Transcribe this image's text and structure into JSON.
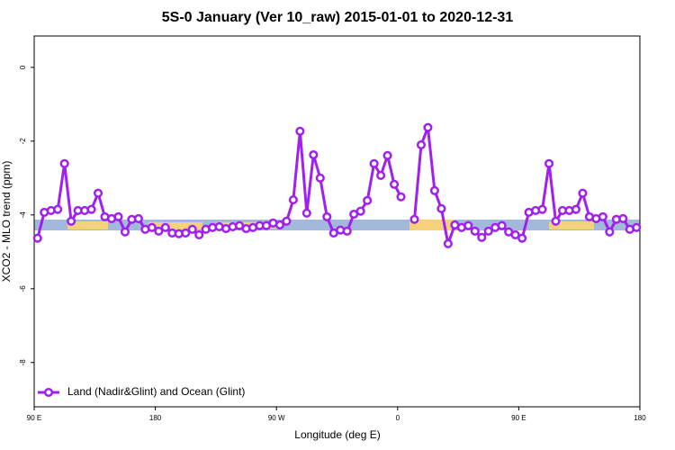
{
  "chart_data": {
    "type": "line",
    "title": "5S-0 January (Ver 10_raw)   2015-01-01 to 2020-12-31",
    "x_label": "Longitude (deg E)",
    "y_label": "XCO2 - MLO trend (ppm)",
    "xlim": [
      90,
      540
    ],
    "ylim": [
      -9.2,
      0.85
    ],
    "xticks": [
      {
        "value": 90,
        "label": "90 E"
      },
      180,
      {
        "value": 270,
        "label": "90 W"
      },
      {
        "value": 360,
        "label": "0"
      },
      {
        "value": 450,
        "label": "90 E"
      },
      {
        "value": 540,
        "label": "180"
      }
    ],
    "yticks": [
      0,
      -2,
      -4,
      -6,
      -8
    ],
    "legend": "bottom-left",
    "x": [
      92.5,
      97.5,
      102.5,
      107.5,
      112.5,
      117.5,
      122.5,
      127.5,
      132.5,
      137.5,
      142.5,
      147.5,
      152.5,
      157.5,
      162.5,
      167.5,
      172.5,
      177.5,
      182.5,
      187.5,
      192.5,
      197.5,
      202.5,
      207.5,
      212.5,
      217.5,
      222.5,
      227.5,
      232.5,
      237.5,
      242.5,
      247.5,
      252.5,
      257.5,
      262.5,
      267.5,
      272.5,
      277.5,
      282.5,
      287.5,
      292.5,
      297.5,
      302.5,
      307.5,
      312.5,
      317.5,
      322.5,
      327.5,
      332.5,
      337.5,
      342.5,
      347.5,
      352.5,
      357.5,
      362.5,
      367.5,
      372.5,
      377.5,
      382.5,
      387.5,
      392.5,
      397.5,
      402.5,
      407.5,
      412.5,
      417.5,
      422.5,
      427.5,
      432.5,
      437.5,
      442.5,
      447.5,
      452.5,
      457.5,
      462.5,
      467.5,
      472.5,
      477.5,
      482.5,
      487.5,
      492.5,
      497.5,
      502.5,
      507.5,
      512.5,
      517.5,
      522.5,
      527.5,
      532.5,
      537.5
    ],
    "series": [
      {
        "name": "Land (Nadir&Glint) and Ocean (Glint)",
        "color": "#a020f0",
        "values": [
          -4.63,
          -3.93,
          -3.88,
          -3.85,
          -2.61,
          -4.17,
          -3.88,
          -3.88,
          -3.85,
          -3.41,
          -4.05,
          -4.1,
          -4.05,
          -4.46,
          -4.12,
          -4.1,
          -4.39,
          -4.34,
          -4.44,
          -4.34,
          -4.49,
          -4.51,
          -4.49,
          -4.39,
          -4.54,
          -4.39,
          -4.34,
          -4.32,
          -4.37,
          -4.32,
          -4.29,
          -4.37,
          -4.34,
          -4.29,
          -4.29,
          -4.22,
          -4.27,
          -4.17,
          -3.59,
          -1.73,
          -3.95,
          -2.37,
          -3.0,
          -4.05,
          -4.49,
          -4.41,
          -4.44,
          -3.98,
          -3.9,
          -3.61,
          -2.61,
          -2.93,
          -2.39,
          -3.17,
          -3.51,
          null,
          -4.12,
          -2.1,
          -1.63,
          -3.34,
          -3.83,
          -4.78,
          -4.27,
          -4.34,
          -4.29,
          -4.44,
          -4.61,
          -4.44,
          -4.34,
          -4.29,
          -4.46,
          -4.54,
          -4.63,
          -3.93,
          -3.88,
          -3.85,
          -2.61,
          -4.17,
          -3.88,
          -3.88,
          -3.85,
          -3.41,
          -4.05,
          -4.1,
          -4.05,
          -4.46,
          -4.12,
          -4.1,
          -4.39,
          -4.34
        ]
      }
    ]
  }
}
